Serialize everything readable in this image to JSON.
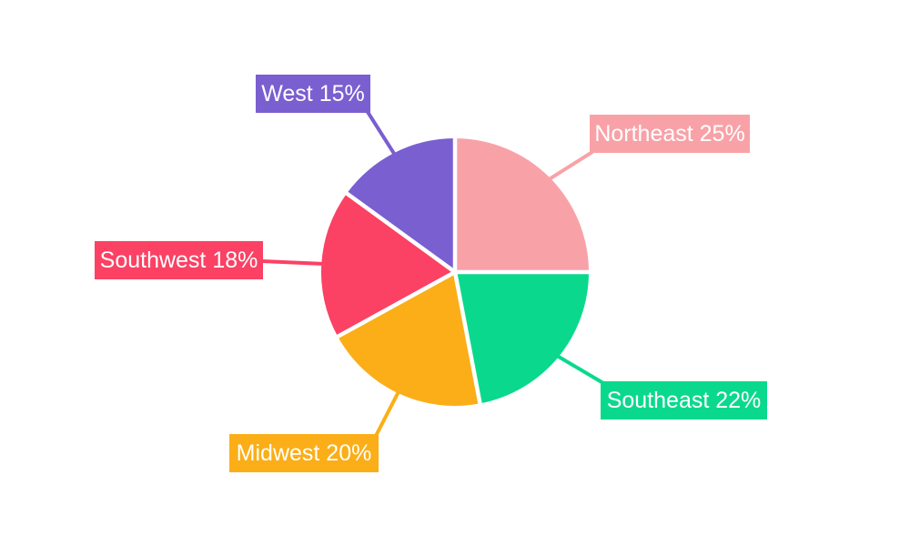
{
  "page": {
    "background_color": "#FFFFFF"
  },
  "chart_data": {
    "type": "pie",
    "title": "",
    "categories": [
      "Northeast",
      "Southeast",
      "Midwest",
      "Southwest",
      "West"
    ],
    "values": [
      25,
      22,
      20,
      18,
      15
    ],
    "unit": "%",
    "total": 100,
    "colors": [
      "#F8A2A8",
      "#0AD98D",
      "#FBAE17",
      "#FB4164",
      "#7A5FD0"
    ],
    "display_labels": [
      "Northeast 25%",
      "Southeast 22%",
      "Midwest 20%",
      "Southwest 18%",
      "West 15%"
    ],
    "start_angle_deg": 0,
    "direction": "clockwise",
    "slice_separator_color": "#FFFFFF",
    "label_style": "external-callout-boxes",
    "label_text_color": "#FFFFFF",
    "leader_lines": true
  }
}
